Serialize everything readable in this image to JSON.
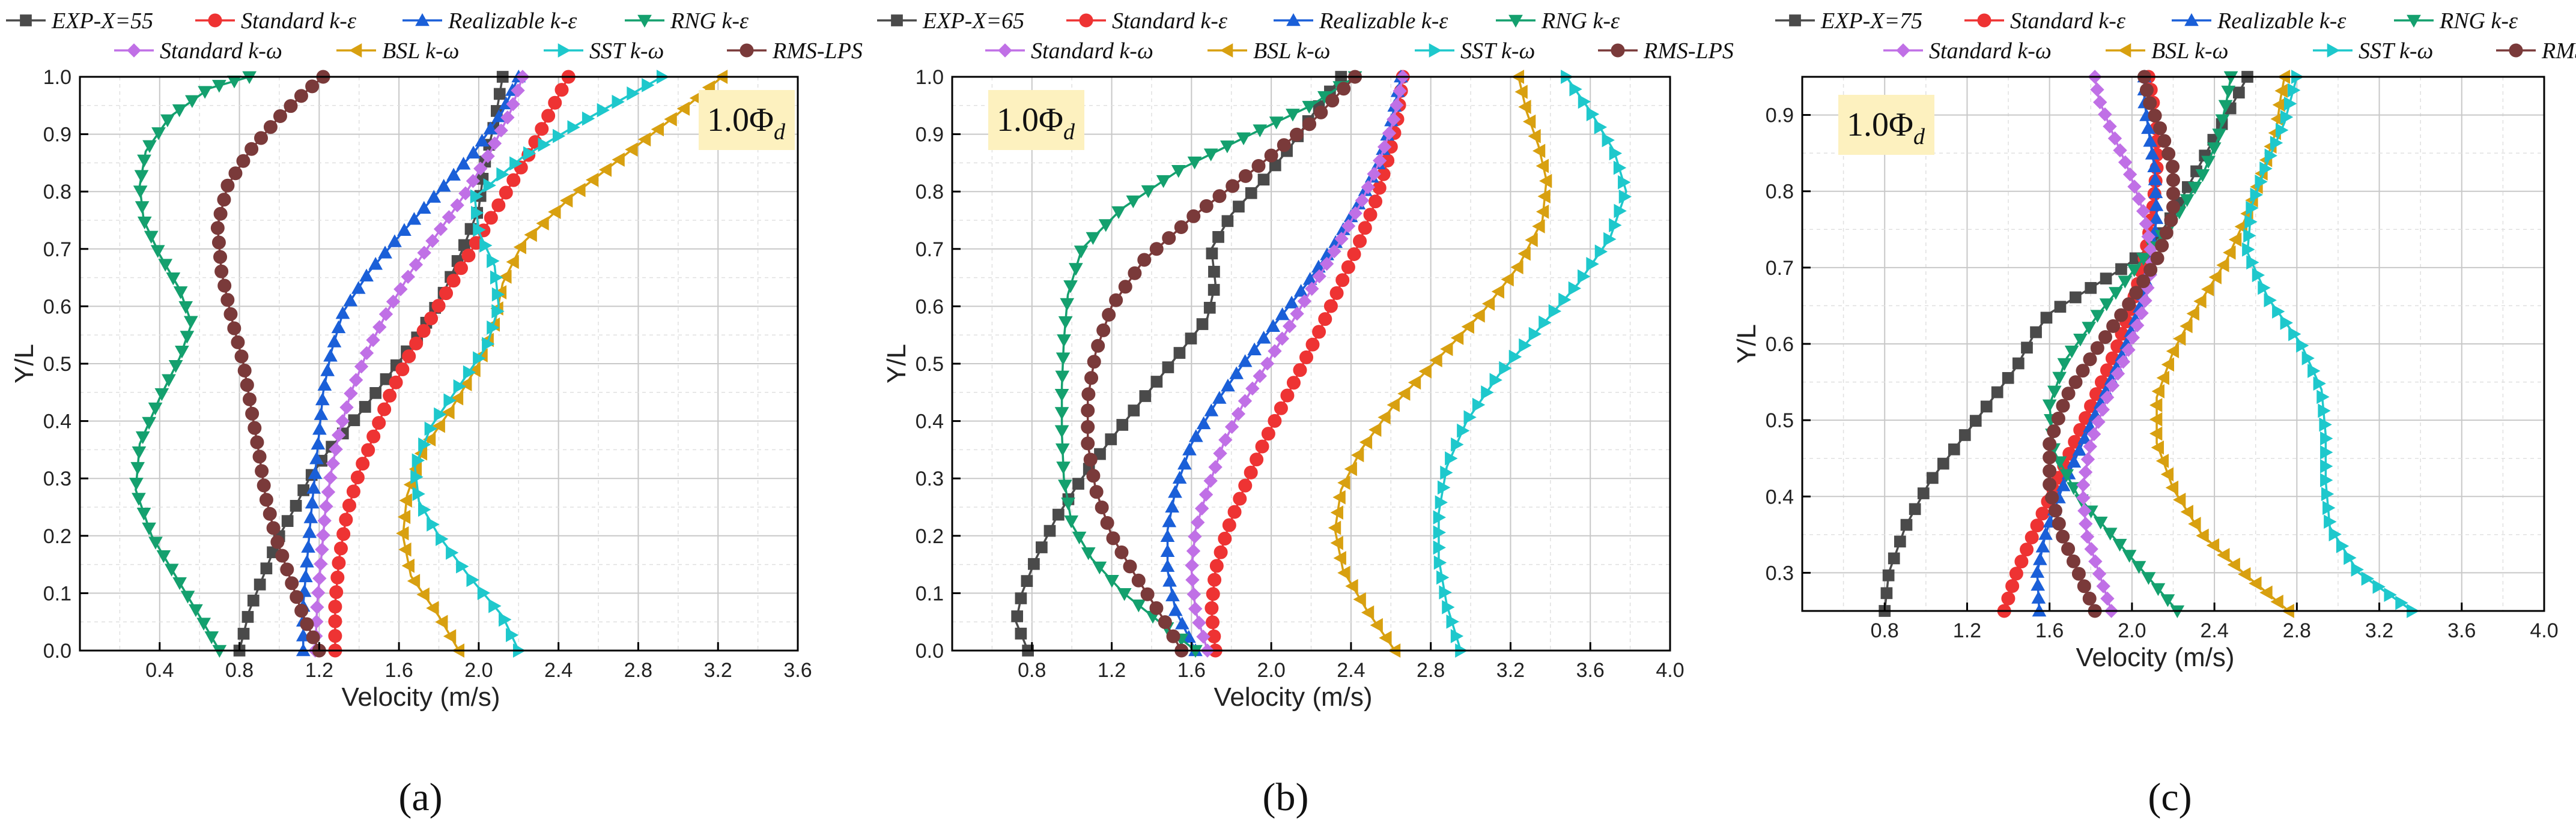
{
  "styles": [
    {
      "key": "exp",
      "color": "#4a4a4a",
      "marker": "square"
    },
    {
      "key": "ske",
      "color": "#ee3333",
      "marker": "circle"
    },
    {
      "key": "rke",
      "color": "#1a5fd8",
      "marker": "triangle-up"
    },
    {
      "key": "rng",
      "color": "#14a06e",
      "marker": "triangle-down"
    },
    {
      "key": "skw",
      "color": "#c070e6",
      "marker": "diamond"
    },
    {
      "key": "bsl",
      "color": "#d8a010",
      "marker": "triangle-left"
    },
    {
      "key": "sst",
      "color": "#1ec8cc",
      "marker": "triangle-right"
    },
    {
      "key": "rms",
      "color": "#7a3a3a",
      "marker": "circle"
    }
  ],
  "chart_data": [
    {
      "type": "line",
      "panel_label": "a",
      "caption": "(a)",
      "badge_main": "1.0Φ",
      "badge_sub": "d",
      "xlabel": "Velocity (m/s)",
      "ylabel": "Y/L",
      "xlim": [
        0,
        3.6
      ],
      "ylim": [
        0,
        1.0
      ],
      "xticks": [
        "0.4",
        "0.8",
        "1.2",
        "1.6",
        "2.0",
        "2.4",
        "2.8",
        "3.2",
        "3.6"
      ],
      "yticks": [
        "0.0",
        "0.1",
        "0.2",
        "0.3",
        "0.4",
        "0.5",
        "0.6",
        "0.7",
        "0.8",
        "0.9",
        "1.0"
      ],
      "series": [
        {
          "name": "EXP-X=55",
          "x": [
            0.8,
            0.85,
            0.92,
            1.0,
            1.08,
            1.15,
            1.25,
            1.42,
            1.55,
            1.7,
            1.82,
            1.92,
            2.0,
            2.03,
            2.08,
            2.12
          ],
          "y": [
            0.0,
            0.07,
            0.13,
            0.2,
            0.25,
            0.3,
            0.35,
            0.42,
            0.48,
            0.55,
            0.62,
            0.7,
            0.77,
            0.85,
            0.92,
            1.0
          ]
        },
        {
          "name": "Standard k-ε",
          "x": [
            1.28,
            1.28,
            1.3,
            1.34,
            1.4,
            1.48,
            1.56,
            1.66,
            1.78,
            1.9,
            2.02,
            2.14,
            2.26,
            2.36,
            2.45
          ],
          "y": [
            0.0,
            0.08,
            0.16,
            0.24,
            0.31,
            0.38,
            0.45,
            0.52,
            0.59,
            0.66,
            0.73,
            0.8,
            0.87,
            0.94,
            1.0
          ]
        },
        {
          "name": "Realizable k-ε",
          "x": [
            1.12,
            1.12,
            1.14,
            1.16,
            1.18,
            1.2,
            1.22,
            1.26,
            1.32,
            1.45,
            1.62,
            1.8,
            1.98,
            2.12,
            2.2
          ],
          "y": [
            0.0,
            0.08,
            0.16,
            0.24,
            0.31,
            0.38,
            0.45,
            0.52,
            0.59,
            0.66,
            0.73,
            0.8,
            0.87,
            0.94,
            1.0
          ]
        },
        {
          "name": "RNG k-ε",
          "x": [
            0.7,
            0.6,
            0.48,
            0.36,
            0.28,
            0.3,
            0.4,
            0.5,
            0.56,
            0.5,
            0.4,
            0.32,
            0.3,
            0.33,
            0.45,
            0.65,
            0.85
          ],
          "y": [
            0.0,
            0.06,
            0.13,
            0.2,
            0.28,
            0.36,
            0.44,
            0.51,
            0.57,
            0.63,
            0.69,
            0.75,
            0.81,
            0.87,
            0.93,
            0.98,
            1.0
          ]
        },
        {
          "name": "Standard k-ω",
          "x": [
            1.18,
            1.19,
            1.21,
            1.23,
            1.26,
            1.3,
            1.36,
            1.44,
            1.54,
            1.66,
            1.8,
            1.94,
            2.06,
            2.16,
            2.22
          ],
          "y": [
            0.0,
            0.08,
            0.16,
            0.24,
            0.31,
            0.38,
            0.45,
            0.52,
            0.59,
            0.66,
            0.73,
            0.8,
            0.87,
            0.94,
            1.0
          ]
        },
        {
          "name": "BSL k-ω",
          "x": [
            1.9,
            1.8,
            1.66,
            1.62,
            1.64,
            1.72,
            1.86,
            2.0,
            2.08,
            2.12,
            2.22,
            2.46,
            2.72,
            2.98,
            3.22
          ],
          "y": [
            0.0,
            0.06,
            0.13,
            0.2,
            0.27,
            0.35,
            0.42,
            0.5,
            0.57,
            0.64,
            0.71,
            0.79,
            0.86,
            0.93,
            1.0
          ]
        },
        {
          "name": "SST k-ω",
          "x": [
            2.2,
            2.12,
            1.95,
            1.8,
            1.7,
            1.68,
            1.76,
            1.9,
            2.04,
            2.1,
            2.08,
            2.0,
            1.98,
            2.22,
            2.56,
            2.92
          ],
          "y": [
            0.0,
            0.06,
            0.13,
            0.2,
            0.26,
            0.32,
            0.39,
            0.46,
            0.53,
            0.6,
            0.67,
            0.73,
            0.79,
            0.86,
            0.93,
            1.0
          ]
        },
        {
          "name": "RMS-LPS",
          "x": [
            1.2,
            1.12,
            1.05,
            0.98,
            0.93,
            0.9,
            0.86,
            0.82,
            0.76,
            0.71,
            0.69,
            0.74,
            0.85,
            1.0,
            1.12,
            1.22
          ],
          "y": [
            0.0,
            0.06,
            0.13,
            0.2,
            0.27,
            0.34,
            0.42,
            0.5,
            0.58,
            0.66,
            0.74,
            0.81,
            0.87,
            0.93,
            0.97,
            1.0
          ]
        }
      ]
    },
    {
      "type": "line",
      "panel_label": "b",
      "caption": "(b)",
      "badge_main": "1.0Φ",
      "badge_sub": "d",
      "xlabel": "Velocity (m/s)",
      "ylabel": "Y/L",
      "xlim": [
        0.4,
        4.0
      ],
      "ylim": [
        0,
        1.0
      ],
      "xticks": [
        "0.8",
        "1.2",
        "1.6",
        "2.0",
        "2.4",
        "2.8",
        "3.2",
        "3.6",
        "4.0"
      ],
      "yticks": [
        "0.0",
        "0.1",
        "0.2",
        "0.3",
        "0.4",
        "0.5",
        "0.6",
        "0.7",
        "0.8",
        "0.9",
        "1.0"
      ],
      "series": [
        {
          "name": "EXP-X=65",
          "x": [
            0.78,
            0.72,
            0.75,
            0.82,
            0.92,
            1.05,
            1.2,
            1.36,
            1.52,
            1.68,
            1.72,
            1.7,
            1.8,
            1.96,
            2.1,
            2.22,
            2.35
          ],
          "y": [
            0.0,
            0.05,
            0.1,
            0.16,
            0.23,
            0.3,
            0.37,
            0.44,
            0.51,
            0.58,
            0.64,
            0.7,
            0.76,
            0.82,
            0.88,
            0.94,
            1.0
          ]
        },
        {
          "name": "Standard k-ε",
          "x": [
            1.72,
            1.7,
            1.72,
            1.78,
            1.86,
            1.96,
            2.06,
            2.16,
            2.26,
            2.35,
            2.44,
            2.52,
            2.58,
            2.63,
            2.66
          ],
          "y": [
            0.0,
            0.07,
            0.14,
            0.21,
            0.28,
            0.36,
            0.43,
            0.5,
            0.57,
            0.64,
            0.71,
            0.78,
            0.85,
            0.92,
            1.0
          ]
        },
        {
          "name": "Realizable k-ε",
          "x": [
            1.62,
            1.52,
            1.48,
            1.48,
            1.52,
            1.6,
            1.72,
            1.86,
            2.02,
            2.18,
            2.32,
            2.44,
            2.54,
            2.6,
            2.65
          ],
          "y": [
            0.0,
            0.07,
            0.14,
            0.21,
            0.28,
            0.36,
            0.43,
            0.5,
            0.57,
            0.64,
            0.71,
            0.78,
            0.85,
            0.92,
            1.0
          ]
        },
        {
          "name": "RNG k-ε",
          "x": [
            1.62,
            1.44,
            1.26,
            1.1,
            1.0,
            0.96,
            0.95,
            0.95,
            0.96,
            0.98,
            1.05,
            1.25,
            1.55,
            1.9,
            2.2,
            2.42
          ],
          "y": [
            0.0,
            0.05,
            0.1,
            0.16,
            0.22,
            0.3,
            0.38,
            0.46,
            0.54,
            0.62,
            0.7,
            0.77,
            0.84,
            0.9,
            0.95,
            1.0
          ]
        },
        {
          "name": "Standard k-ω",
          "x": [
            1.68,
            1.62,
            1.6,
            1.62,
            1.68,
            1.76,
            1.86,
            1.98,
            2.1,
            2.22,
            2.34,
            2.45,
            2.54,
            2.61,
            2.66
          ],
          "y": [
            0.0,
            0.07,
            0.14,
            0.21,
            0.28,
            0.36,
            0.43,
            0.5,
            0.57,
            0.64,
            0.71,
            0.78,
            0.85,
            0.92,
            1.0
          ]
        },
        {
          "name": "BSL k-ω",
          "x": [
            2.62,
            2.48,
            2.36,
            2.32,
            2.35,
            2.45,
            2.62,
            2.84,
            3.06,
            3.24,
            3.36,
            3.38,
            3.34,
            3.28,
            3.24
          ],
          "y": [
            0.0,
            0.07,
            0.14,
            0.21,
            0.28,
            0.35,
            0.43,
            0.51,
            0.59,
            0.67,
            0.75,
            0.82,
            0.88,
            0.94,
            1.0
          ]
        },
        {
          "name": "SST k-ω",
          "x": [
            2.95,
            2.88,
            2.84,
            2.84,
            2.88,
            2.98,
            3.14,
            3.34,
            3.54,
            3.7,
            3.78,
            3.72,
            3.6,
            3.48
          ],
          "y": [
            0.0,
            0.08,
            0.16,
            0.24,
            0.32,
            0.4,
            0.48,
            0.56,
            0.64,
            0.72,
            0.8,
            0.87,
            0.94,
            1.0
          ]
        },
        {
          "name": "RMS-LPS",
          "x": [
            1.55,
            1.45,
            1.32,
            1.2,
            1.12,
            1.08,
            1.08,
            1.12,
            1.2,
            1.36,
            1.62,
            1.92,
            2.2,
            2.42
          ],
          "y": [
            0.0,
            0.06,
            0.13,
            0.2,
            0.28,
            0.36,
            0.44,
            0.52,
            0.6,
            0.68,
            0.76,
            0.84,
            0.92,
            1.0
          ]
        }
      ]
    },
    {
      "type": "line",
      "panel_label": "c",
      "caption": "(c)",
      "badge_main": "1.0Φ",
      "badge_sub": "d",
      "xlabel": "Velocity (m/s)",
      "ylabel": "Y/L",
      "xlim": [
        0.4,
        4.0
      ],
      "ylim": [
        0.25,
        0.95
      ],
      "xticks": [
        "0.8",
        "1.2",
        "1.6",
        "2.0",
        "2.4",
        "2.8",
        "3.2",
        "3.6",
        "4.0"
      ],
      "yticks": [
        "0.3",
        "0.4",
        "0.5",
        "0.6",
        "0.7",
        "0.8",
        "0.9"
      ],
      "series": [
        {
          "name": "EXP-X=75",
          "x": [
            0.8,
            0.82,
            0.9,
            1.02,
            1.16,
            1.3,
            1.44,
            1.52,
            1.6,
            1.78,
            1.96,
            2.1,
            2.2,
            2.28,
            2.36,
            2.44,
            2.52,
            2.56
          ],
          "y": [
            0.25,
            0.3,
            0.36,
            0.42,
            0.47,
            0.52,
            0.57,
            0.61,
            0.64,
            0.67,
            0.7,
            0.73,
            0.77,
            0.81,
            0.85,
            0.89,
            0.93,
            0.95
          ]
        },
        {
          "name": "Standard k-ε",
          "x": [
            1.38,
            1.44,
            1.52,
            1.62,
            1.72,
            1.82,
            1.92,
            2.0,
            2.06,
            2.1,
            2.12,
            2.12,
            2.1,
            2.08
          ],
          "y": [
            0.25,
            0.3,
            0.35,
            0.41,
            0.47,
            0.53,
            0.59,
            0.65,
            0.71,
            0.77,
            0.83,
            0.88,
            0.92,
            0.95
          ]
        },
        {
          "name": "Realizable k-ε",
          "x": [
            1.55,
            1.54,
            1.58,
            1.66,
            1.76,
            1.86,
            1.96,
            2.04,
            2.1,
            2.12,
            2.11,
            2.08,
            2.06,
            2.06
          ],
          "y": [
            0.25,
            0.3,
            0.35,
            0.41,
            0.47,
            0.53,
            0.59,
            0.65,
            0.71,
            0.77,
            0.83,
            0.88,
            0.92,
            0.95
          ]
        },
        {
          "name": "RNG k-ε",
          "x": [
            2.22,
            2.06,
            1.9,
            1.74,
            1.62,
            1.6,
            1.68,
            1.84,
            2.02,
            2.2,
            2.34,
            2.42,
            2.46,
            2.48
          ],
          "y": [
            0.25,
            0.3,
            0.35,
            0.4,
            0.46,
            0.52,
            0.58,
            0.64,
            0.7,
            0.76,
            0.82,
            0.87,
            0.92,
            0.95
          ]
        },
        {
          "name": "Standard k-ω",
          "x": [
            1.9,
            1.84,
            1.78,
            1.76,
            1.8,
            1.88,
            1.98,
            2.06,
            2.1,
            2.06,
            1.98,
            1.9,
            1.84,
            1.82
          ],
          "y": [
            0.25,
            0.3,
            0.35,
            0.41,
            0.47,
            0.53,
            0.59,
            0.65,
            0.71,
            0.77,
            0.83,
            0.88,
            0.92,
            0.95
          ]
        },
        {
          "name": "BSL k-ω",
          "x": [
            2.76,
            2.54,
            2.34,
            2.2,
            2.12,
            2.12,
            2.2,
            2.32,
            2.46,
            2.56,
            2.64,
            2.7,
            2.72,
            2.74
          ],
          "y": [
            0.25,
            0.3,
            0.35,
            0.41,
            0.47,
            0.53,
            0.59,
            0.65,
            0.71,
            0.77,
            0.83,
            0.88,
            0.92,
            0.95
          ]
        },
        {
          "name": "SST k-ω",
          "x": [
            3.36,
            3.1,
            2.96,
            2.94,
            2.94,
            2.92,
            2.82,
            2.66,
            2.56,
            2.58,
            2.66,
            2.74,
            2.78,
            2.8
          ],
          "y": [
            0.25,
            0.3,
            0.36,
            0.42,
            0.48,
            0.54,
            0.6,
            0.66,
            0.72,
            0.78,
            0.84,
            0.89,
            0.93,
            0.95
          ]
        },
        {
          "name": "RMS-LPS",
          "x": [
            1.82,
            1.74,
            1.66,
            1.6,
            1.6,
            1.68,
            1.82,
            1.98,
            2.12,
            2.2,
            2.2,
            2.14,
            2.08,
            2.06
          ],
          "y": [
            0.25,
            0.3,
            0.35,
            0.41,
            0.47,
            0.53,
            0.59,
            0.65,
            0.71,
            0.77,
            0.83,
            0.88,
            0.92,
            0.95
          ]
        }
      ]
    }
  ]
}
